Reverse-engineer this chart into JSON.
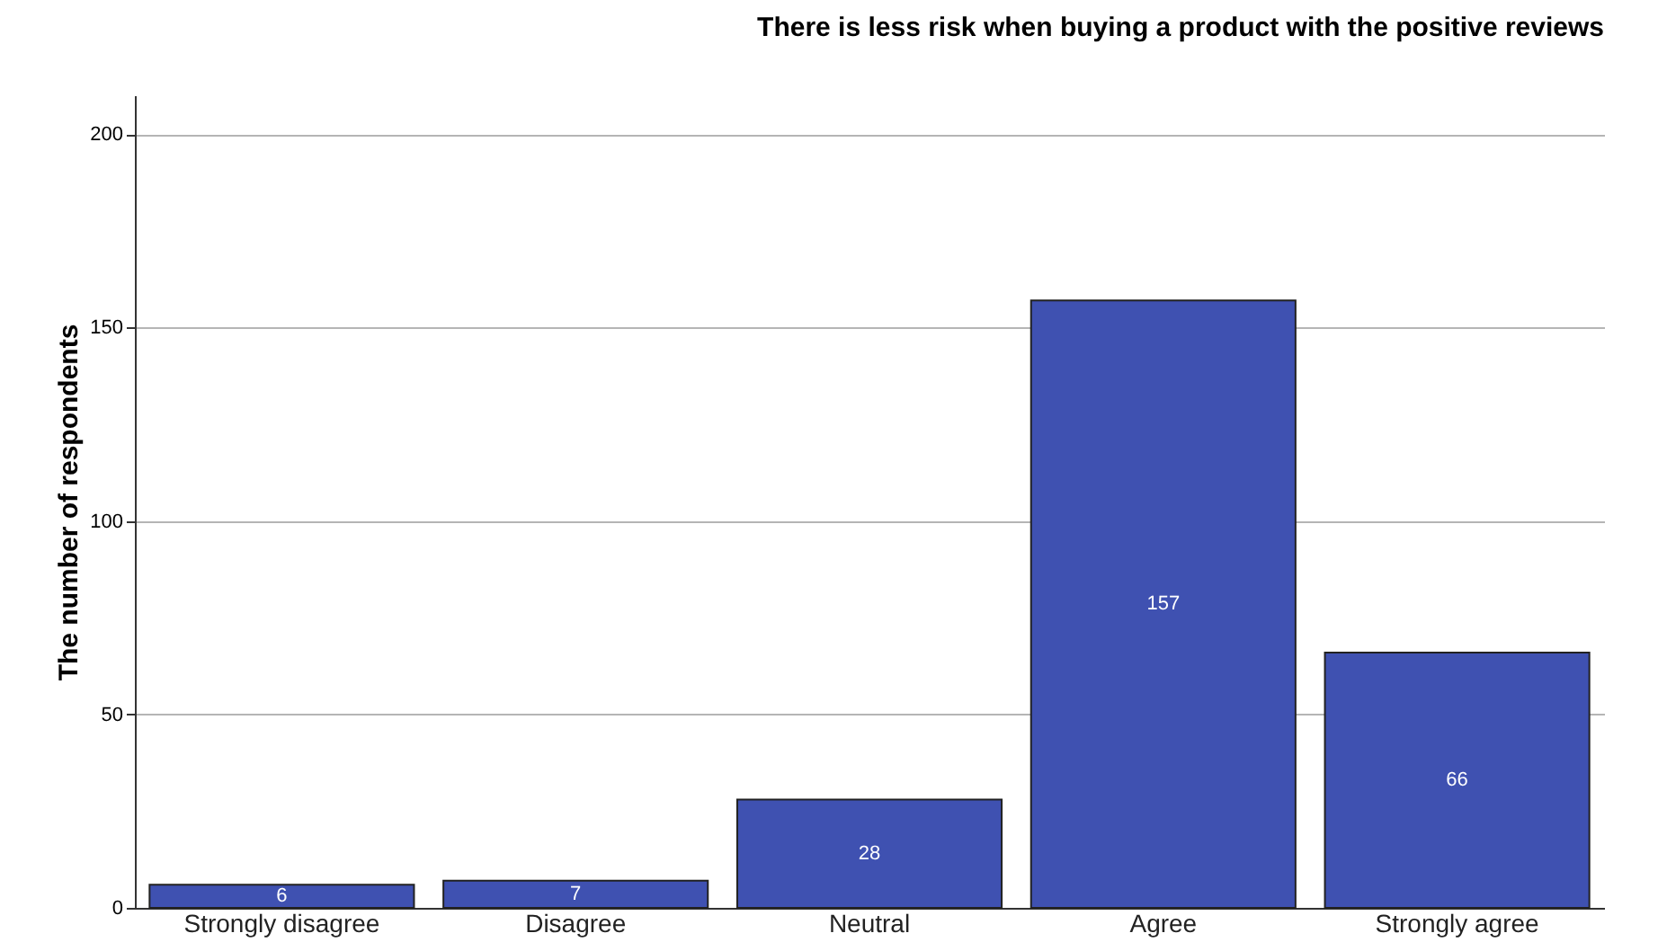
{
  "chart_data": {
    "type": "bar",
    "title": "There is less risk when buying a product with the positive reviews",
    "ylabel": "The number of respondents",
    "categories": [
      "Strongly disagree",
      "Disagree",
      "Neutral",
      "Agree",
      "Strongly agree"
    ],
    "values": [
      6,
      7,
      28,
      157,
      66
    ],
    "color": "#3f51b1",
    "ylim": [
      0,
      210
    ],
    "yticks": [
      0,
      50,
      100,
      150,
      200
    ],
    "grid": "y",
    "data_labels": true
  }
}
